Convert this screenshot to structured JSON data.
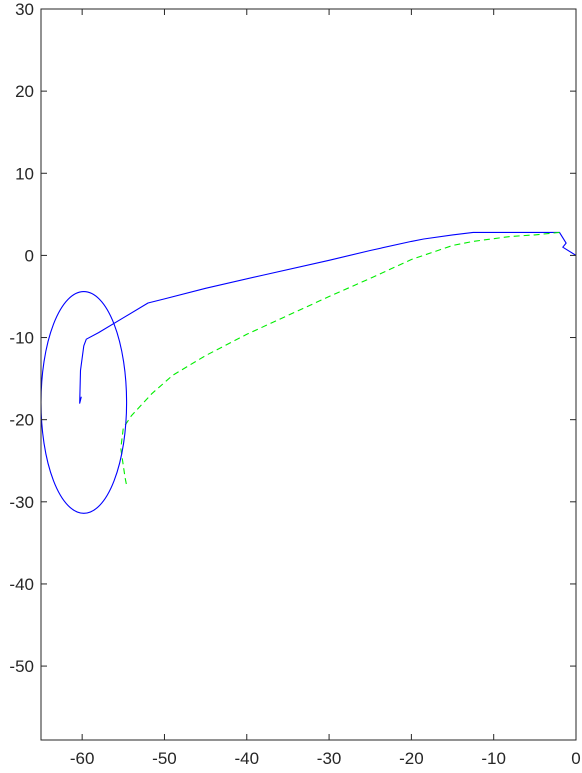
{
  "chart_data": {
    "type": "line",
    "title": "",
    "xlabel": "",
    "ylabel": "",
    "xlim": [
      -65,
      0
    ],
    "ylim": [
      -59,
      30
    ],
    "xticks": [
      -60,
      -50,
      -40,
      -30,
      -20,
      -10,
      0
    ],
    "yticks": [
      30,
      20,
      10,
      0,
      -10,
      -20,
      -30,
      -40,
      -50
    ],
    "grid": false,
    "legend": "none",
    "series": [
      {
        "style": "solid",
        "color": "#0000ff",
        "x": [
          0,
          -1.6,
          -1.2,
          -2.0,
          -12.5,
          -15.0,
          -18.5,
          -20.0,
          -25.0,
          -30.0,
          -38.0,
          -45.0,
          -50.0,
          -52.0,
          -55.0,
          -58.0,
          -59.5,
          -59.8,
          -60.2,
          -60.3,
          -60.1
        ],
        "y": [
          0.0,
          1.0,
          1.5,
          2.8,
          2.8,
          2.5,
          2.0,
          1.7,
          0.6,
          -0.6,
          -2.4,
          -4.0,
          -5.3,
          -5.8,
          -7.6,
          -9.4,
          -10.2,
          -11.0,
          -14.0,
          -18.0,
          -17.2
        ]
      },
      {
        "style": "dashed",
        "color": "#00ee00",
        "x": [
          -2.0,
          -5.0,
          -8.0,
          -12.5,
          -15.0,
          -20.0,
          -25.0,
          -30.0,
          -35.0,
          -40.0,
          -45.0,
          -49.0,
          -51.5,
          -54.0,
          -55.0,
          -55.3,
          -54.8,
          -54.6
        ],
        "y": [
          2.8,
          2.5,
          2.3,
          1.7,
          1.2,
          -0.5,
          -2.8,
          -5.0,
          -7.3,
          -9.6,
          -12.2,
          -14.6,
          -16.8,
          -19.5,
          -21.0,
          -23.5,
          -27.0,
          -28.0
        ]
      },
      {
        "style": "ellipse",
        "color": "#0000ff",
        "cx": -59.8,
        "cy": -17.9,
        "rx": 5.2,
        "ry": 13.5
      }
    ]
  }
}
